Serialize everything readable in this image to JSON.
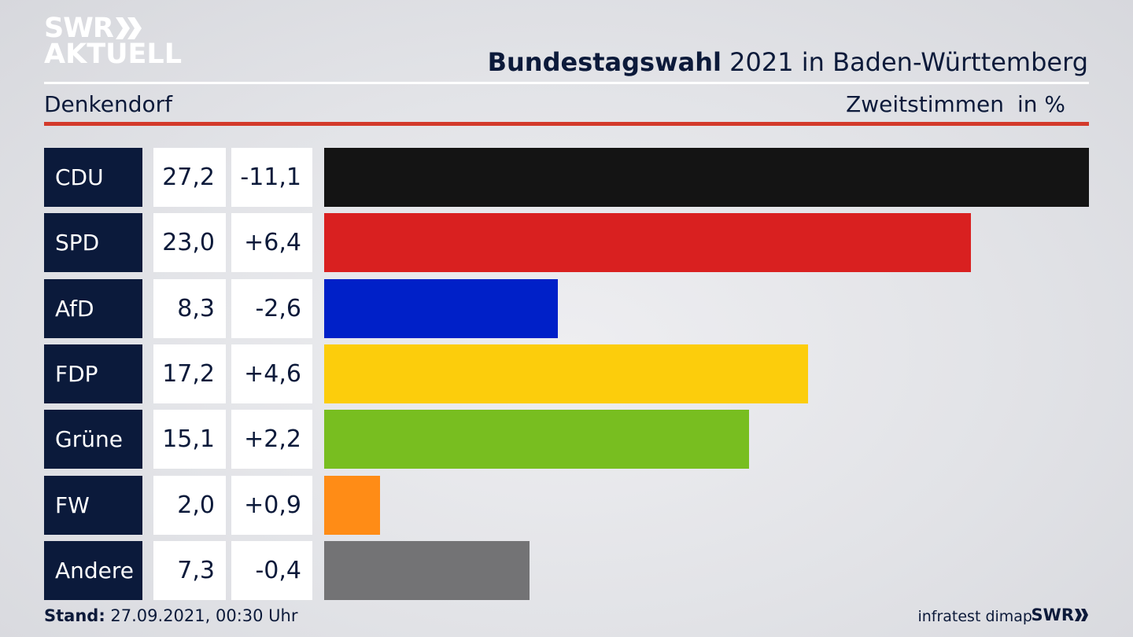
{
  "logo": {
    "line1": "SWR",
    "line2": "AKTUELL"
  },
  "header": {
    "title_bold": "Bundestagswahl",
    "title_rest": " 2021 in Baden-Württemberg",
    "region": "Denkendorf",
    "metric": "Zweitstimmen",
    "unit": "in %"
  },
  "chart_data": {
    "type": "bar",
    "title": "Bundestagswahl 2021 in Baden-Württemberg",
    "subtitle": "Denkendorf",
    "categories": [
      "CDU",
      "SPD",
      "AfD",
      "FDP",
      "Grüne",
      "FW",
      "Andere"
    ],
    "values": [
      27.2,
      23.0,
      8.3,
      17.2,
      15.1,
      2.0,
      7.3
    ],
    "value_labels": [
      "27,2",
      "23,0",
      "8,3",
      "17,2",
      "15,1",
      "2,0",
      "7,3"
    ],
    "changes": [
      -11.1,
      6.4,
      -2.6,
      4.6,
      2.2,
      0.9,
      -0.4
    ],
    "change_labels": [
      "-11,1",
      "+6,4",
      "-2,6",
      "+4,6",
      "+2,2",
      "+0,9",
      "-0,4"
    ],
    "colors": [
      "#141414",
      "#d92020",
      "#0020c8",
      "#fccd0c",
      "#78be20",
      "#ff8c16",
      "#737375"
    ],
    "xlim": [
      0,
      27.2
    ],
    "grid": false,
    "orientation": "horizontal"
  },
  "footer": {
    "stand_label": "Stand:",
    "stand_value": " 27.09.2021, 00:30 Uhr",
    "source": "infratest dimap",
    "brand": "SWR"
  }
}
